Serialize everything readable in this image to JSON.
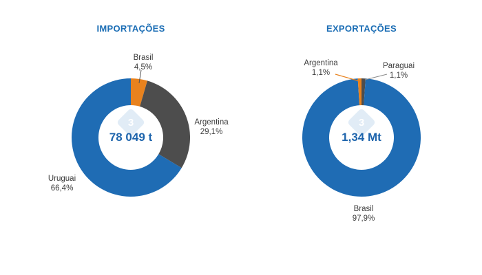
{
  "page": {
    "background": "#ffffff"
  },
  "chart_data": [
    {
      "type": "pie",
      "variant": "donut",
      "title": "IMPORTAÇÕES",
      "center_label": "78 049 t",
      "legend_position": "labels-around-donut",
      "slices": [
        {
          "name": "Brasil",
          "value_pct": 4.5,
          "pct_label": "4,5%",
          "color": "#E8821E"
        },
        {
          "name": "Argentina",
          "value_pct": 29.1,
          "pct_label": "29,1%",
          "color": "#4D4D4D"
        },
        {
          "name": "Uruguai",
          "value_pct": 66.4,
          "pct_label": "66,4%",
          "color": "#1F6CB4"
        }
      ]
    },
    {
      "type": "pie",
      "variant": "donut",
      "title": "EXPORTAÇÕES",
      "center_label": "1,34 Mt",
      "legend_position": "labels-around-donut",
      "slices": [
        {
          "name": "Paraguai",
          "value_pct": 1.1,
          "pct_label": "1,1%",
          "color": "#4D4D4D"
        },
        {
          "name": "Brasil",
          "value_pct": 97.9,
          "pct_label": "97,9%",
          "color": "#1F6CB4"
        },
        {
          "name": "Argentina",
          "value_pct": 1.1,
          "pct_label": "1,1%",
          "color": "#E8821E"
        }
      ]
    }
  ],
  "colors": {
    "title_blue": "#1C6EB5",
    "value_blue": "#1D64AC",
    "slice_blue": "#1F6CB4",
    "slice_gray": "#4D4D4D",
    "slice_orange": "#E8821E",
    "label_gray": "#3D3D3D",
    "watermark_blue": "#C9DDF0"
  },
  "watermark": {
    "glyph": "3"
  }
}
